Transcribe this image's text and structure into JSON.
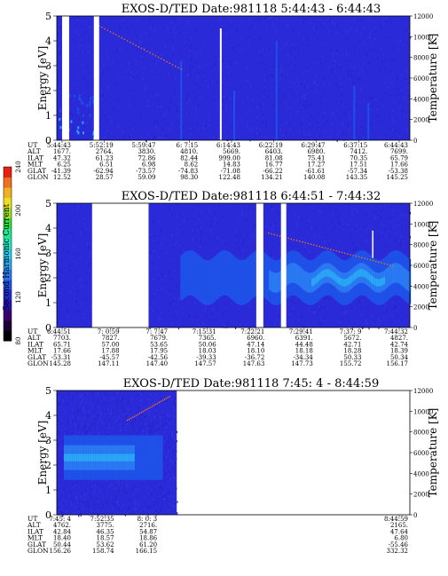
{
  "chart_data": [
    {
      "type": "heatmap",
      "title": "EXOS-D/TED   Date:981118  5:44:43 - 6:44:43",
      "ylabel": "Energy [eV]",
      "y2label": "Temperature [K]",
      "ylim": [
        0,
        5
      ],
      "y2lim": [
        0,
        12000
      ],
      "yticks": [
        "0",
        "1",
        "2",
        "3",
        "4",
        "5"
      ],
      "y2ticks": [
        "0",
        "2000",
        "4000",
        "6000",
        "8000",
        "10000",
        "12000"
      ],
      "rows": [
        "UT",
        "ALT",
        "ILAT",
        "MLT",
        "GLAT",
        "GLON"
      ],
      "columns": [
        [
          "5:44:43",
          "1677.",
          "47.32",
          "6.25",
          "-41.39",
          "12.52"
        ],
        [
          "5:52:19",
          "2764.",
          "61.23",
          "6.51",
          "-62.94",
          "28.57"
        ],
        [
          "5:59:47",
          "3830.",
          "72.86",
          "6.98",
          "-73.57",
          "59.09"
        ],
        [
          "6: 7:15",
          "4810.",
          "82.44",
          "8.62",
          "-74.83",
          "98.30"
        ],
        [
          "6:14:43",
          "5669.",
          "999.00",
          "14.83",
          "-71.08",
          "122.48"
        ],
        [
          "6:22:19",
          "6403.",
          "81.08",
          "16.77",
          "-66.22",
          "134.21"
        ],
        [
          "6:29:47",
          "6980.",
          "75.41",
          "17.27",
          "-61.61",
          "140.08"
        ],
        [
          "6:37:15",
          "7412.",
          "70.35",
          "17.51",
          "-57.34",
          "143.35"
        ],
        [
          "6:44:43",
          "7699.",
          "65.79",
          "17.66",
          "-53.38",
          "145.25"
        ]
      ],
      "gaps": [
        [
          0.015,
          0.035
        ],
        [
          0.105,
          0.12
        ]
      ],
      "dropouts": [
        0.462
      ]
    },
    {
      "type": "heatmap",
      "title": "EXOS-D/TED   Date:981118  6:44:51 - 7:44:32",
      "ylabel": "Energy [eV]",
      "y2label": "Temperature [K]",
      "ylim": [
        0,
        5
      ],
      "y2lim": [
        0,
        12000
      ],
      "yticks": [
        "0",
        "1",
        "2",
        "3",
        "4",
        "5"
      ],
      "y2ticks": [
        "0",
        "2000",
        "4000",
        "6000",
        "8000",
        "10000",
        "12000"
      ],
      "rows": [
        "UT",
        "ALT",
        "ILAT",
        "MLT",
        "GLAT",
        "GLON"
      ],
      "columns": [
        [
          "6:44:51",
          "7703.",
          "65.71",
          "17.66",
          "-53.31",
          "145.28"
        ],
        [
          "7: 0:59",
          "7827.",
          "57.00",
          "17.88",
          "-45.57",
          "147.11"
        ],
        [
          "7: 7:47",
          "7679.",
          "53.65",
          "17.95",
          "-42.56",
          "147.40"
        ],
        [
          "7:15:31",
          "7365.",
          "50.06",
          "18.03",
          "-39.33",
          "147.57"
        ],
        [
          "7:22:21",
          "6960.",
          "47.14",
          "18.10",
          "-36.72",
          "147.63"
        ],
        [
          "7:29:41",
          "6391.",
          "44.48",
          "18.18",
          "-34.34",
          "147.73"
        ],
        [
          "7:37: 9",
          "5672.",
          "42.71",
          "18.28",
          "50.33",
          "155.72"
        ],
        [
          "7:44:32",
          "4827.",
          "42.74",
          "18.39",
          "50.34",
          "156.17"
        ]
      ],
      "gaps": [
        [
          0.1,
          0.26
        ],
        [
          0.565,
          0.585
        ],
        [
          0.635,
          0.65
        ]
      ],
      "dropouts": []
    },
    {
      "type": "heatmap",
      "title": "EXOS-D/TED   Date:981118  7:45: 4 - 8:44:59",
      "ylabel": "Energy [eV]",
      "y2label": "Temperature [K]",
      "ylim": [
        0,
        5
      ],
      "y2lim": [
        0,
        12000
      ],
      "yticks": [
        "0",
        "1",
        "2",
        "3",
        "4",
        "5"
      ],
      "y2ticks": [
        "0",
        "2000",
        "4000",
        "6000",
        "8000",
        "10000",
        "12000"
      ],
      "rows": [
        "UT",
        "ALT",
        "ILAT",
        "MLT",
        "GLAT",
        "GLON"
      ],
      "columns": [
        [
          "7:45: 4",
          "4762.",
          "42.84",
          "18.40",
          "50.44",
          "156.26"
        ],
        [
          "7:52:35",
          "3775.",
          "46.35",
          "18.57",
          "53.62",
          "158.74"
        ],
        [
          "8: 0: 3",
          "2716.",
          "54.87",
          "18.86",
          "61.20",
          "166.15"
        ],
        [
          "8:44:59",
          "2165.",
          "47.64",
          "6.80",
          "-55.46",
          "332.32"
        ]
      ],
      "blank_from": 0.34
    }
  ],
  "colorbar": {
    "label": "Second Harmonic Current",
    "ticks": [
      "80",
      "120",
      "160",
      "200",
      "240"
    ],
    "vlim": [
      80,
      240
    ],
    "colors": [
      "#000000",
      "#1a0033",
      "#3a006b",
      "#2a0fb0",
      "#1e2bd6",
      "#1f50e8",
      "#2a7af2",
      "#2aa8f5",
      "#25d0f0",
      "#20e8c0",
      "#20e890",
      "#30e040",
      "#9ae020",
      "#e8e020",
      "#f0b020",
      "#f07020",
      "#e82010"
    ]
  }
}
